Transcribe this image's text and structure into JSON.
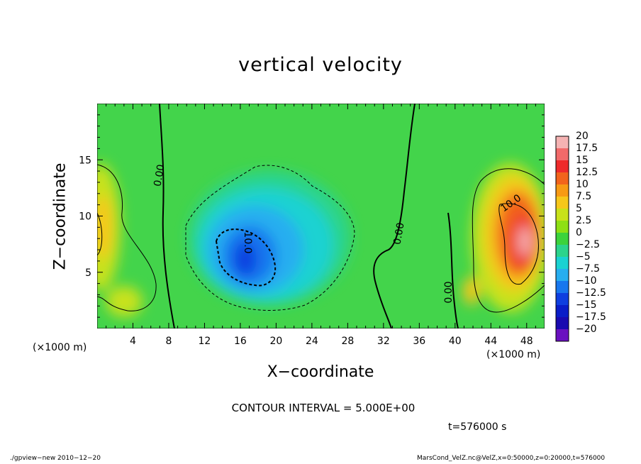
{
  "chart_data": {
    "type": "heatmap",
    "title": "vertical velocity",
    "xlabel": "X−coordinate",
    "ylabel": "Z−coordinate",
    "x_unit": "(×1000 m)",
    "z_unit": "(×1000 m)",
    "xlim": [
      0,
      50
    ],
    "ylim": [
      0,
      20
    ],
    "x_ticks": [
      4,
      8,
      12,
      16,
      20,
      24,
      28,
      32,
      36,
      40,
      44,
      48
    ],
    "y_ticks": [
      5,
      10,
      15
    ],
    "colorbar": {
      "levels": [
        20,
        17.5,
        15,
        12.5,
        10,
        7.5,
        5,
        2.5,
        0,
        -2.5,
        -5,
        -7.5,
        -10,
        -12.5,
        -15,
        -17.5,
        -20
      ],
      "labels": [
        "20",
        "17.5",
        "15",
        "12.5",
        "10",
        "7.5",
        "5",
        "2.5",
        "0",
        "−2.5",
        "−5",
        "−7.5",
        "−10",
        "−12.5",
        "−15",
        "−17.5",
        "−20"
      ],
      "colors": [
        "#f5b3b3",
        "#f26a6a",
        "#ee2b2b",
        "#f2641c",
        "#f79a14",
        "#f6c71a",
        "#c8e21a",
        "#8ee014",
        "#3cd33c",
        "#2cd48c",
        "#1ad2d2",
        "#27aef0",
        "#1877ee",
        "#0f3fe0",
        "#0a1dc8",
        "#1a0ab0",
        "#6a10c0"
      ]
    },
    "contour_labels": [
      "0.00",
      "10.0",
      "0.00",
      "0.00",
      "10.0"
    ],
    "contour_interval": "CONTOUR INTERVAL = 5.000E+00",
    "time": "t=576000 s"
  },
  "footer": {
    "left": "./gpview−new  2010−12−20",
    "right": "MarsCond_VelZ.nc@VelZ,x=0:50000,z=0:20000,t=576000"
  }
}
